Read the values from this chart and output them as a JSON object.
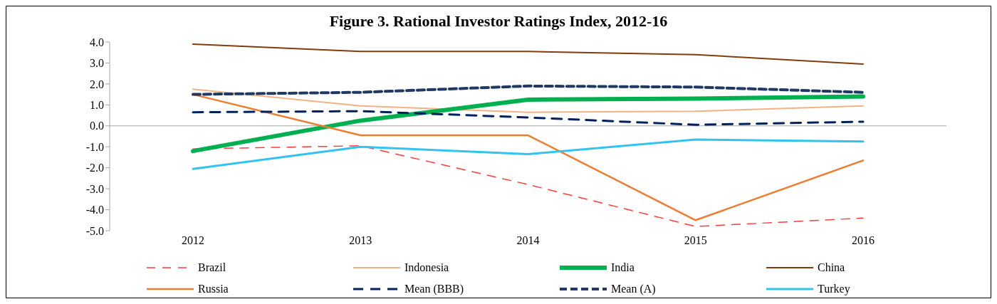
{
  "chart_data": {
    "type": "line",
    "title": "Figure 3. Rational Investor Ratings Index, 2012-16",
    "categories": [
      "2012",
      "2013",
      "2014",
      "2015",
      "2016"
    ],
    "ylim": [
      -5,
      4
    ],
    "yticks": [
      {
        "value": -5,
        "label": "-5.0"
      },
      {
        "value": -4,
        "label": "-4.0"
      },
      {
        "value": -3,
        "label": "-3.0"
      },
      {
        "value": -2,
        "label": "-2.0"
      },
      {
        "value": -1,
        "label": "-1.0"
      },
      {
        "value": 0,
        "label": "0.0"
      },
      {
        "value": 1,
        "label": "1.0"
      },
      {
        "value": 2,
        "label": "2.0"
      },
      {
        "value": 3,
        "label": "3.0"
      },
      {
        "value": 4,
        "label": "4.0"
      }
    ],
    "legend": "bottom",
    "ref_lines": [
      {
        "axis": "y",
        "value": 0,
        "color": "#a6a6a6"
      }
    ],
    "series": [
      {
        "name": "Brazil",
        "color": "#ff3b3b",
        "line_style": "dashed",
        "values": [
          -1.1,
          -0.95,
          -2.8,
          -4.8,
          -4.4
        ]
      },
      {
        "name": "Indonesia",
        "color": "#f5b183",
        "values": [
          1.75,
          0.95,
          0.65,
          0.7,
          0.95
        ]
      },
      {
        "name": "India",
        "color": "#00b050",
        "values": [
          -1.2,
          0.25,
          1.25,
          1.3,
          1.4
        ]
      },
      {
        "name": "China",
        "color": "#843c0c",
        "values": [
          3.9,
          3.55,
          3.55,
          3.4,
          2.95
        ]
      },
      {
        "name": "Russia",
        "color": "#ed7d31",
        "values": [
          1.5,
          -0.45,
          -0.45,
          -4.5,
          -1.65
        ]
      },
      {
        "name": "Mean (BBB)",
        "color": "#002060",
        "line_style": "dashed",
        "values": [
          0.65,
          0.7,
          0.4,
          0.05,
          0.2
        ]
      },
      {
        "name": "Mean (A)",
        "color": "#1f3864",
        "line_style": "dashed",
        "values": [
          1.5,
          1.6,
          1.9,
          1.85,
          1.6
        ]
      },
      {
        "name": "Turkey",
        "color": "#33c3f0",
        "values": [
          -2.05,
          -1.0,
          -1.35,
          -0.65,
          -0.75
        ]
      }
    ]
  }
}
